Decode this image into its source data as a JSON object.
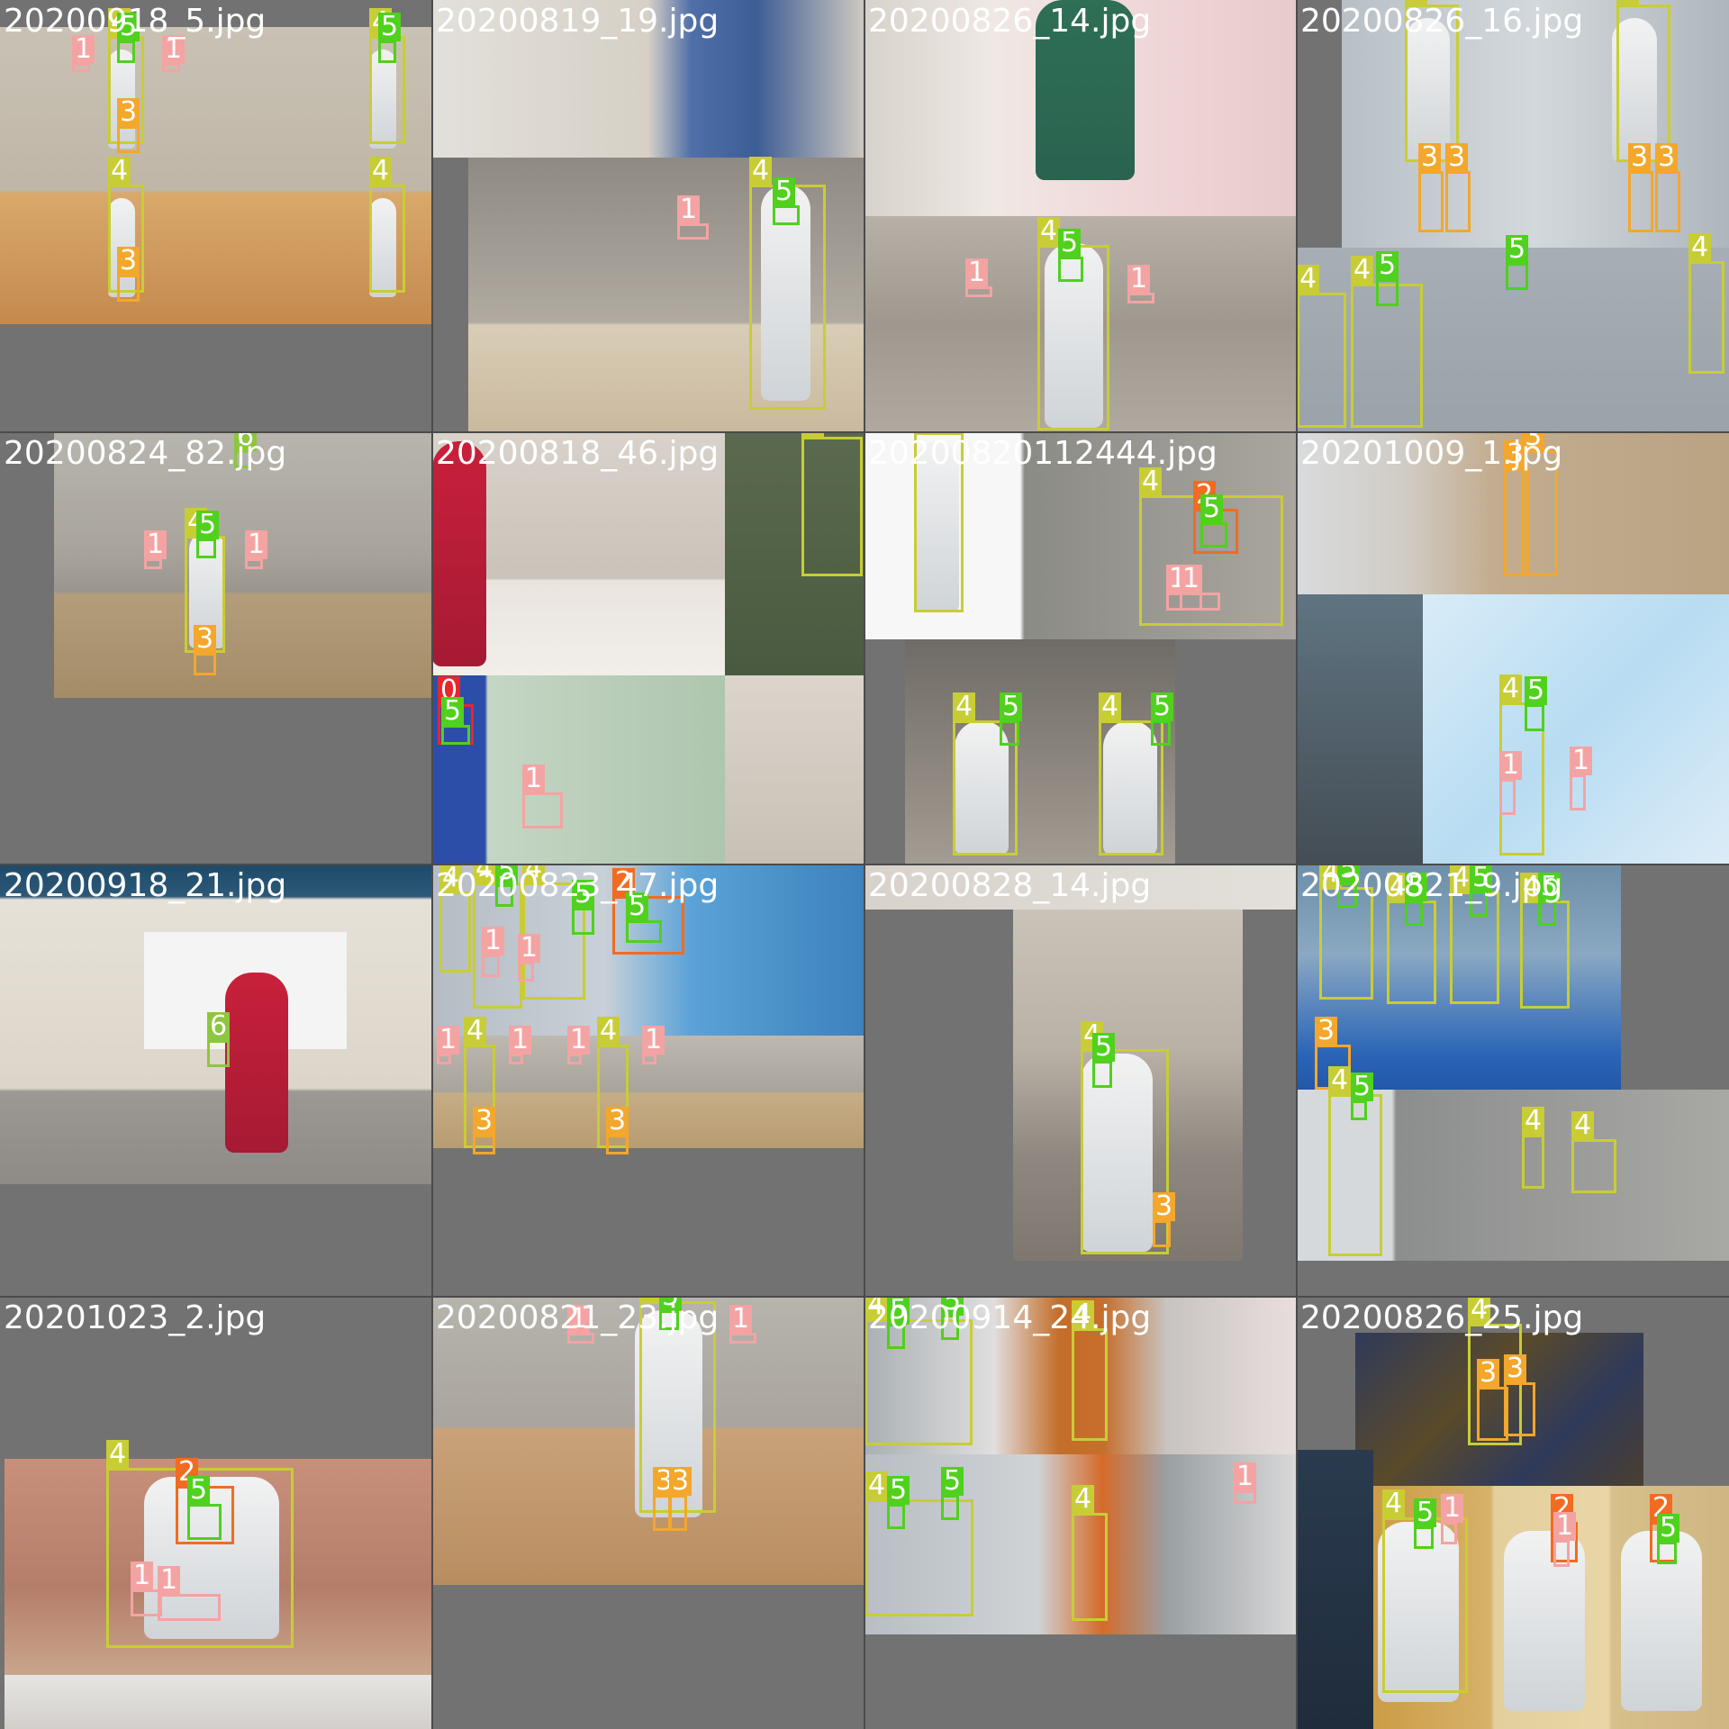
{
  "colors": {
    "class_0": "#e8262b",
    "class_1": "#f4a3a3",
    "class_2": "#f26b21",
    "class_3": "#f3a72c",
    "class_4": "#c8cd35",
    "class_5": "#4fd11d",
    "class_6": "#8dc63f",
    "background": "#727272"
  },
  "tiles": [
    {
      "filename": "20200918_5.jpg"
    },
    {
      "filename": "20200819_19.jpg"
    },
    {
      "filename": "20200826_14.jpg"
    },
    {
      "filename": "20200826_16.jpg"
    },
    {
      "filename": "20200824_82.jpg"
    },
    {
      "filename": "20200818_46.jpg"
    },
    {
      "filename": "20200820112444.jpg"
    },
    {
      "filename": "20201009_1.jpg"
    },
    {
      "filename": "20200918_21.jpg"
    },
    {
      "filename": "20200823_47.jpg"
    },
    {
      "filename": "20200828_14.jpg"
    },
    {
      "filename": "20200821_9.jpg"
    },
    {
      "filename": "20201023_2.jpg"
    },
    {
      "filename": "20200821_23.jpg"
    },
    {
      "filename": "20200914_24.jpg"
    },
    {
      "filename": "20200826_25.jpg"
    }
  ],
  "labels": {
    "c0": "0",
    "c1": "1",
    "c2": "2",
    "c3": "3",
    "c4": "4",
    "c5": "5",
    "c6": "6"
  }
}
